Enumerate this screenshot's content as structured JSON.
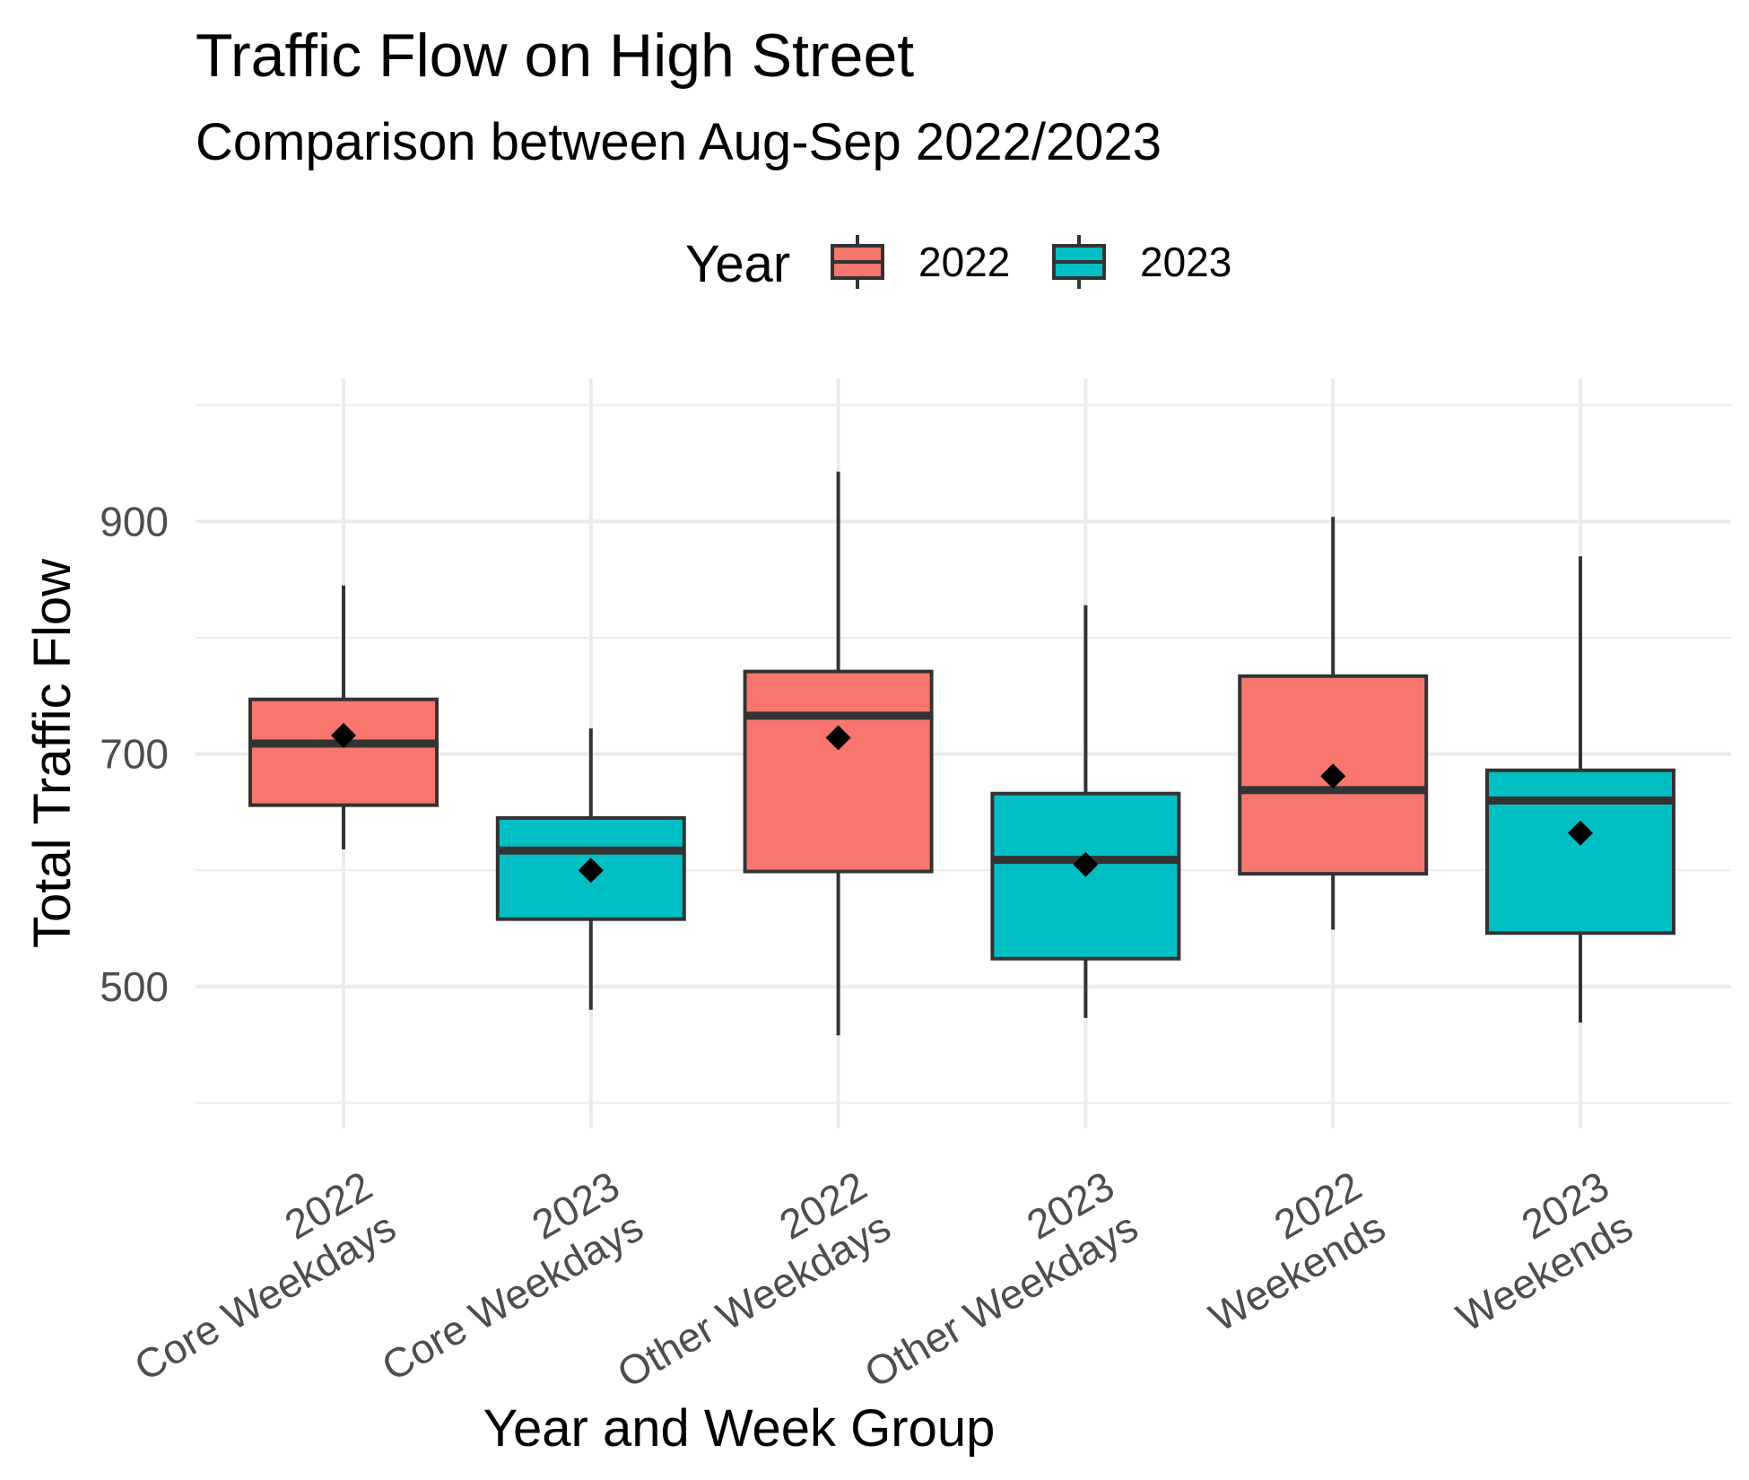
{
  "chart_data": {
    "type": "boxplot",
    "title": "Traffic Flow on High Street",
    "subtitle": "Comparison between Aug-Sep 2022/2023",
    "xlabel": "Year and Week Group",
    "ylabel": "Total Traffic Flow",
    "ylim": [
      378,
      1023
    ],
    "yticks": [
      500,
      700,
      900
    ],
    "grid": true,
    "legend": {
      "title": "Year",
      "position": "top",
      "entries": [
        {
          "label": "2022",
          "color": "#F8766D"
        },
        {
          "label": "2023",
          "color": "#00BFC4"
        }
      ]
    },
    "categories": [
      {
        "line1": "2022",
        "line2": "Core Weekdays",
        "year": "2022",
        "min": 618,
        "q1": 656,
        "median": 709,
        "q3": 747,
        "max": 845,
        "mean": 716
      },
      {
        "line1": "2023",
        "line2": "Core Weekdays",
        "year": "2023",
        "min": 480,
        "q1": 558,
        "median": 617,
        "q3": 645,
        "max": 722,
        "mean": 600
      },
      {
        "line1": "2022",
        "line2": "Other Weekdays",
        "year": "2022",
        "min": 458,
        "q1": 599,
        "median": 733,
        "q3": 771,
        "max": 943,
        "mean": 714
      },
      {
        "line1": "2023",
        "line2": "Other Weekdays",
        "year": "2023",
        "min": 473,
        "q1": 524,
        "median": 609,
        "q3": 666,
        "max": 828,
        "mean": 605
      },
      {
        "line1": "2022",
        "line2": "Weekends",
        "year": "2022",
        "min": 549,
        "q1": 597,
        "median": 669,
        "q3": 767,
        "max": 904,
        "mean": 681
      },
      {
        "line1": "2023",
        "line2": "Weekends",
        "year": "2023",
        "min": 469,
        "q1": 546,
        "median": 660,
        "q3": 686,
        "max": 870,
        "mean": 632
      }
    ]
  }
}
